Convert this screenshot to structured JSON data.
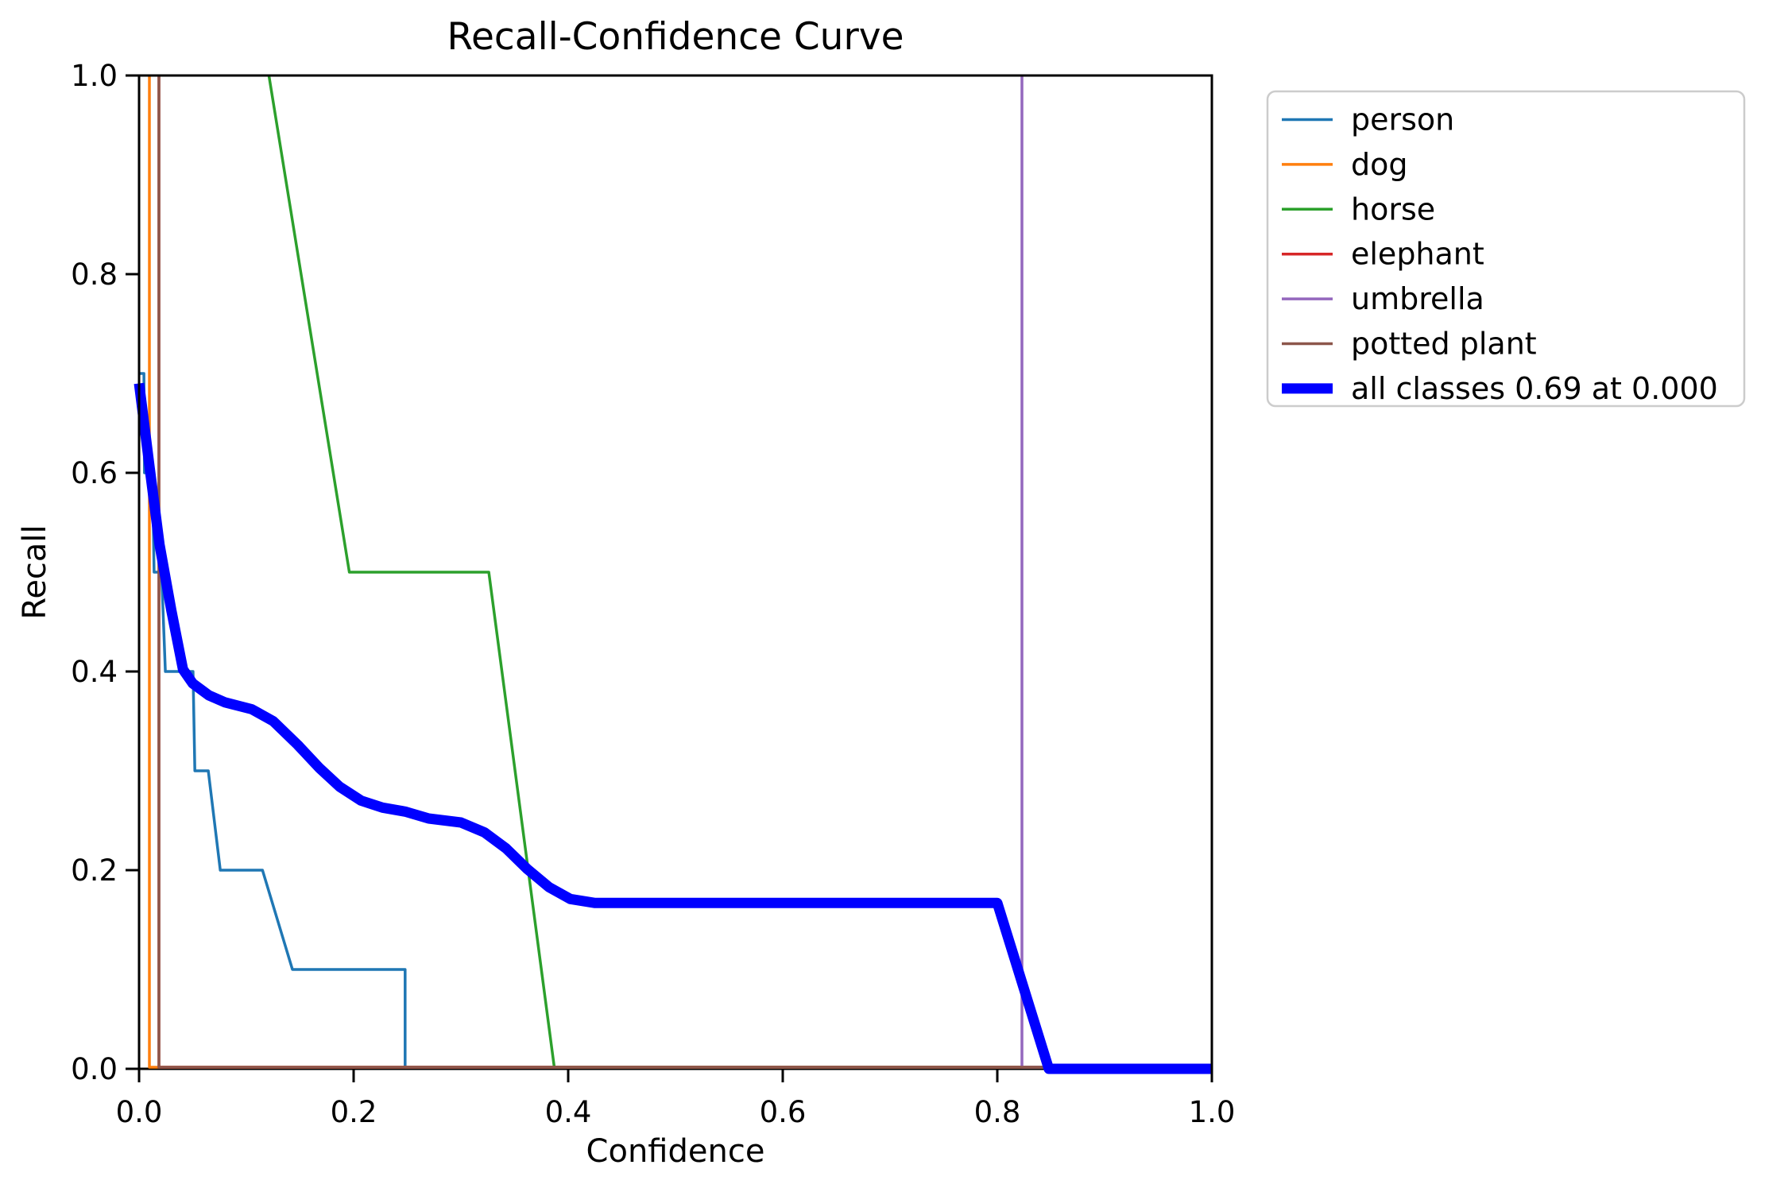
{
  "title": "Recall-Confidence Curve",
  "axes": {
    "x_label": "Confidence",
    "y_label": "Recall",
    "x_ticks": [
      "0.0",
      "0.2",
      "0.4",
      "0.6",
      "0.8",
      "1.0"
    ],
    "y_ticks": [
      "0.0",
      "0.2",
      "0.4",
      "0.6",
      "0.8",
      "1.0"
    ],
    "x_range": [
      0.0,
      1.0
    ],
    "y_range": [
      0.0,
      1.0
    ]
  },
  "legend": {
    "items": [
      {
        "label": "person",
        "color": "#1f77b4",
        "lineWidth": 3.5
      },
      {
        "label": "dog",
        "color": "#ff7f0e",
        "lineWidth": 3.5
      },
      {
        "label": "horse",
        "color": "#2ca02c",
        "lineWidth": 3.5
      },
      {
        "label": "elephant",
        "color": "#d62728",
        "lineWidth": 3.5
      },
      {
        "label": "umbrella",
        "color": "#9467bd",
        "lineWidth": 3.5
      },
      {
        "label": "potted plant",
        "color": "#8c564b",
        "lineWidth": 3.5
      },
      {
        "label": "all classes 0.69 at 0.000",
        "color": "#0000ff",
        "lineWidth": 13
      }
    ]
  },
  "chart_data": {
    "type": "line",
    "title": "Recall-Confidence Curve",
    "xlabel": "Confidence",
    "ylabel": "Recall",
    "xlim": [
      0.0,
      1.0
    ],
    "ylim": [
      0.0,
      1.0
    ],
    "grid": false,
    "legend_position": "outside upper right",
    "series": [
      {
        "name": "person",
        "color": "#1f77b4",
        "width": 3.5,
        "points": [
          [
            0.0,
            0.7
          ],
          [
            0.0045,
            0.7
          ],
          [
            0.005,
            0.6
          ],
          [
            0.0125,
            0.6
          ],
          [
            0.014,
            0.5
          ],
          [
            0.021,
            0.5
          ],
          [
            0.0245,
            0.4
          ],
          [
            0.0503,
            0.4
          ],
          [
            0.052,
            0.3
          ],
          [
            0.0645,
            0.3
          ],
          [
            0.0757,
            0.2
          ],
          [
            0.115,
            0.2
          ],
          [
            0.143,
            0.1
          ],
          [
            0.248,
            0.1
          ],
          [
            0.248,
            0.0
          ],
          [
            1.0,
            0.0
          ]
        ]
      },
      {
        "name": "dog",
        "color": "#ff7f0e",
        "width": 3.5,
        "points": [
          [
            0.0096,
            1.0
          ],
          [
            0.0096,
            0.0
          ],
          [
            1.0,
            0.0
          ]
        ]
      },
      {
        "name": "horse",
        "color": "#2ca02c",
        "width": 3.5,
        "points": [
          [
            0.121,
            1.0
          ],
          [
            0.196,
            0.5
          ],
          [
            0.326,
            0.5
          ],
          [
            0.387,
            0.0
          ],
          [
            1.0,
            0.0
          ]
        ]
      },
      {
        "name": "elephant",
        "color": "#d62728",
        "width": 3.5,
        "points": [
          [
            0.0185,
            1.0
          ],
          [
            0.0185,
            0.0
          ],
          [
            1.0,
            0.0
          ]
        ]
      },
      {
        "name": "umbrella",
        "color": "#9467bd",
        "width": 3.5,
        "points": [
          [
            0.823,
            1.0
          ],
          [
            0.823,
            0.0
          ],
          [
            1.0,
            0.0
          ]
        ]
      },
      {
        "name": "potted plant",
        "color": "#8c564b",
        "width": 3.5,
        "points": [
          [
            0.0185,
            1.0
          ],
          [
            0.0185,
            0.0
          ],
          [
            1.0,
            0.0
          ]
        ]
      },
      {
        "name": "all classes 0.69 at 0.000",
        "color": "#0000ff",
        "width": 13,
        "points": [
          [
            0.0,
            0.69
          ],
          [
            0.01,
            0.604
          ],
          [
            0.019,
            0.528
          ],
          [
            0.03,
            0.462
          ],
          [
            0.041,
            0.402
          ],
          [
            0.05,
            0.388
          ],
          [
            0.065,
            0.376
          ],
          [
            0.08,
            0.369
          ],
          [
            0.105,
            0.362
          ],
          [
            0.125,
            0.35
          ],
          [
            0.148,
            0.326
          ],
          [
            0.168,
            0.303
          ],
          [
            0.187,
            0.284
          ],
          [
            0.207,
            0.27
          ],
          [
            0.227,
            0.263
          ],
          [
            0.248,
            0.259
          ],
          [
            0.27,
            0.252
          ],
          [
            0.3,
            0.248
          ],
          [
            0.322,
            0.238
          ],
          [
            0.342,
            0.222
          ],
          [
            0.362,
            0.201
          ],
          [
            0.382,
            0.183
          ],
          [
            0.402,
            0.171
          ],
          [
            0.425,
            0.167
          ],
          [
            0.8,
            0.167
          ],
          [
            0.848,
            0.0
          ],
          [
            1.0,
            0.0
          ]
        ]
      }
    ]
  }
}
